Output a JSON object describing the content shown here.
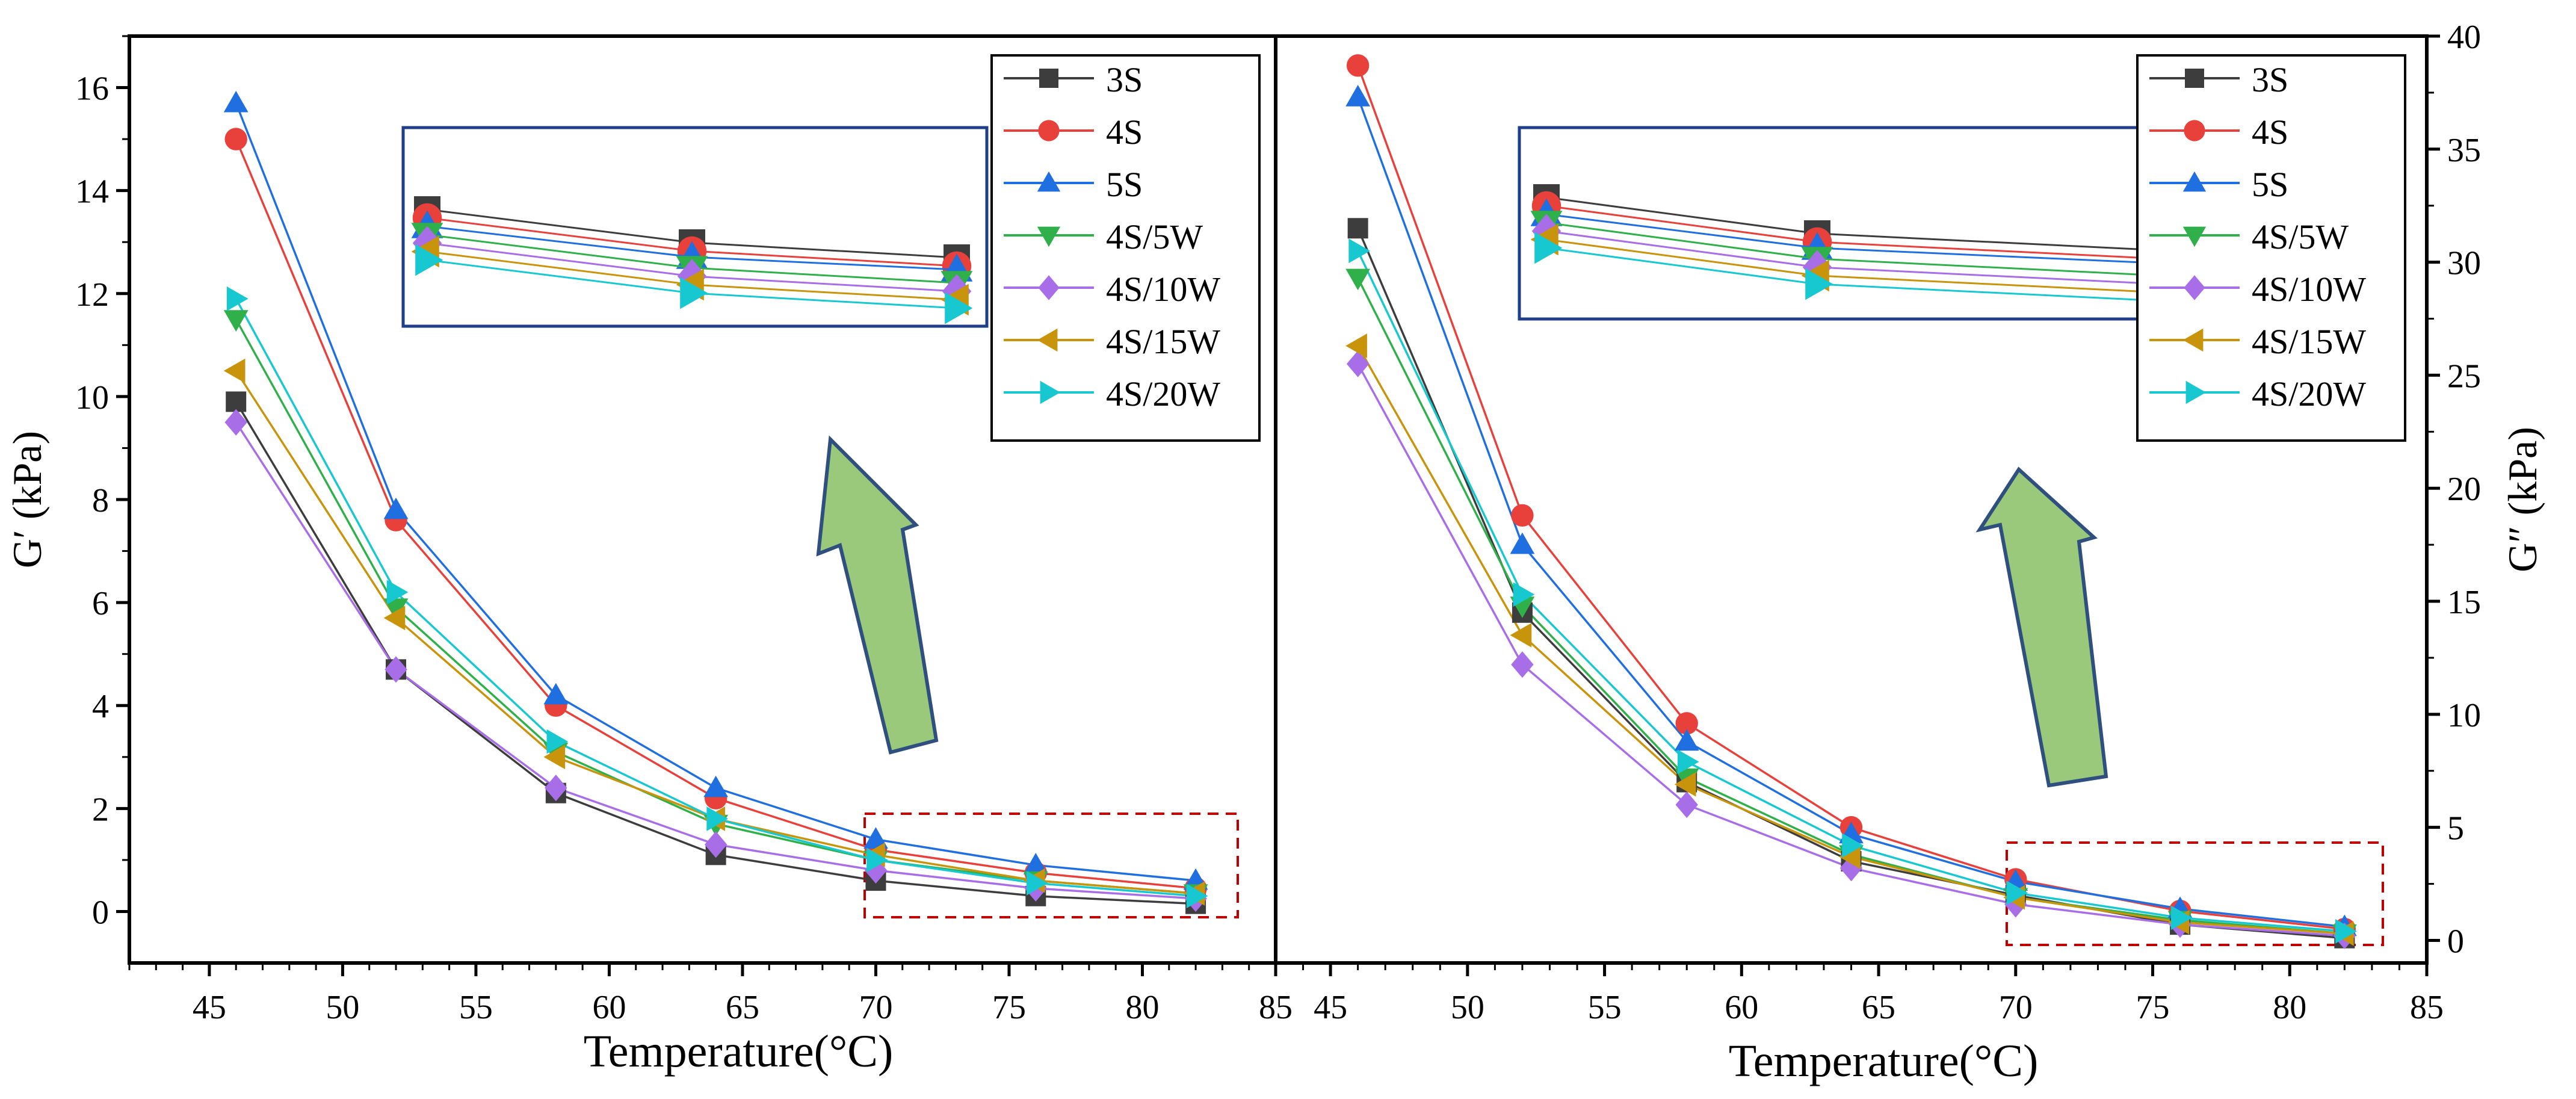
{
  "chart_data": [
    {
      "type": "line",
      "xlabel": "Temperature(°C)",
      "ylabel": "G′ (kPa)",
      "xlim": [
        42,
        85
      ],
      "ylim": [
        -1,
        17
      ],
      "xticks": [
        45,
        50,
        55,
        60,
        65,
        70,
        75,
        80,
        85
      ],
      "yticks": [
        0,
        2,
        4,
        6,
        8,
        10,
        12,
        14,
        16
      ],
      "x": [
        46,
        52,
        58,
        64,
        70,
        76,
        82
      ],
      "series": [
        {
          "name": "3S",
          "values": [
            9.9,
            4.7,
            2.3,
            1.1,
            0.6,
            0.3,
            0.15
          ]
        },
        {
          "name": "4S",
          "values": [
            15.0,
            7.6,
            4.0,
            2.2,
            1.2,
            0.75,
            0.45
          ]
        },
        {
          "name": "5S",
          "values": [
            15.7,
            7.8,
            4.2,
            2.4,
            1.4,
            0.9,
            0.6
          ]
        },
        {
          "name": "4S/5W",
          "values": [
            11.5,
            5.9,
            3.1,
            1.7,
            1.0,
            0.6,
            0.35
          ]
        },
        {
          "name": "4S/10W",
          "values": [
            9.5,
            4.7,
            2.4,
            1.3,
            0.8,
            0.45,
            0.25
          ]
        },
        {
          "name": "4S/15W",
          "values": [
            10.5,
            5.7,
            3.0,
            1.8,
            1.1,
            0.6,
            0.35
          ]
        },
        {
          "name": "4S/20W",
          "values": [
            11.9,
            6.2,
            3.3,
            1.8,
            1.0,
            0.55,
            0.3
          ]
        }
      ],
      "legend_position": "top-right",
      "annotations": [
        "inset zoom box (blue)",
        "dashed red box around 70–82 °C",
        "green upward arrow"
      ]
    },
    {
      "type": "line",
      "xlabel": "Temperature(°C)",
      "ylabel": "G″ (kPa)",
      "ylabel_side": "right",
      "xlim": [
        43,
        85
      ],
      "ylim": [
        -1,
        40
      ],
      "xticks": [
        45,
        50,
        55,
        60,
        65,
        70,
        75,
        80,
        85
      ],
      "yticks": [
        0,
        5,
        10,
        15,
        20,
        25,
        30,
        35,
        40
      ],
      "x": [
        46,
        52,
        58,
        64,
        70,
        76,
        82
      ],
      "series": [
        {
          "name": "3S",
          "values": [
            31.5,
            14.5,
            7.0,
            3.5,
            2.0,
            0.7,
            0.1
          ]
        },
        {
          "name": "4S",
          "values": [
            38.7,
            18.8,
            9.6,
            5.0,
            2.7,
            1.3,
            0.5
          ]
        },
        {
          "name": "5S",
          "values": [
            37.3,
            17.5,
            8.8,
            4.7,
            2.6,
            1.4,
            0.6
          ]
        },
        {
          "name": "4S/5W",
          "values": [
            29.3,
            14.8,
            7.2,
            3.8,
            1.9,
            0.9,
            0.3
          ]
        },
        {
          "name": "4S/10W",
          "values": [
            25.5,
            12.2,
            6.0,
            3.2,
            1.6,
            0.7,
            0.2
          ]
        },
        {
          "name": "4S/15W",
          "values": [
            26.3,
            13.5,
            6.9,
            3.7,
            1.9,
            0.8,
            0.3
          ]
        },
        {
          "name": "4S/20W",
          "values": [
            30.5,
            15.3,
            7.9,
            4.2,
            2.1,
            1.0,
            0.4
          ]
        }
      ],
      "legend_position": "top-right",
      "annotations": [
        "inset zoom box (blue)",
        "dashed red box around 70–82 °C",
        "green upward arrow"
      ]
    }
  ],
  "style": {
    "series_colors": [
      "#3d3d3d",
      "#e8403a",
      "#1f6fe0",
      "#2fb04a",
      "#a86ee8",
      "#c8940c",
      "#18c8d0"
    ],
    "series_markers": [
      "square",
      "circle",
      "triangle-up",
      "triangle-down",
      "diamond",
      "triangle-left",
      "triangle-right"
    ],
    "inset_border_color": "#1f3f8a",
    "dashed_box_color": "#c00000",
    "arrow_fill": "#9ac97b",
    "arrow_stroke": "#2f4f7f"
  }
}
